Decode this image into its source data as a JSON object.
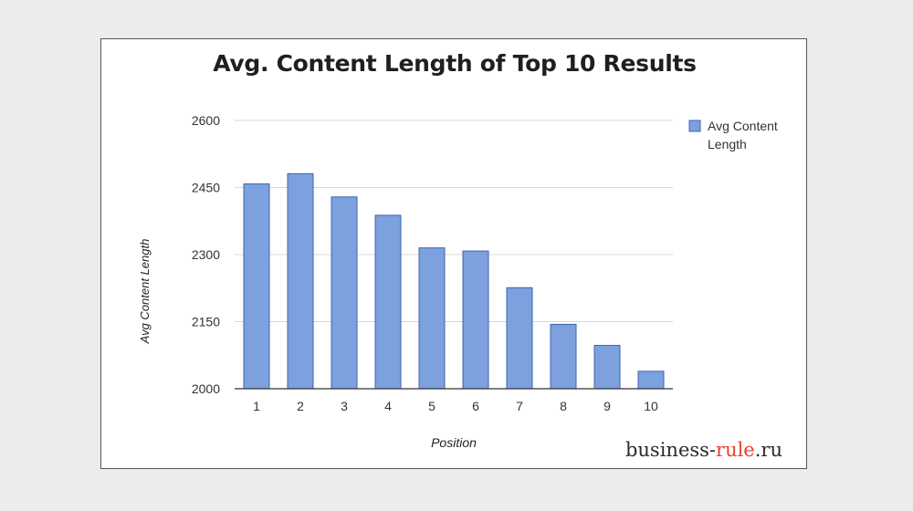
{
  "chart_data": {
    "type": "bar",
    "title": "Avg. Content Length of Top 10 Results",
    "xlabel": "Position",
    "ylabel": "Avg Content Length",
    "categories": [
      "1",
      "2",
      "3",
      "4",
      "5",
      "6",
      "7",
      "8",
      "9",
      "10"
    ],
    "series": [
      {
        "name": "Avg Content Length",
        "values": [
          2458,
          2481,
          2429,
          2388,
          2315,
          2308,
          2226,
          2144,
          2097,
          2039
        ],
        "color": "#7da0de"
      }
    ],
    "ylim": [
      2000,
      2600
    ],
    "yticks": [
      "2000",
      "2150",
      "2300",
      "2450",
      "2600"
    ],
    "grid": true,
    "legend_position": "right",
    "legend_lines": [
      "Avg Content",
      "Length"
    ]
  },
  "watermark": {
    "part1": "business-",
    "part2": "rule",
    "part3": ".ru"
  }
}
